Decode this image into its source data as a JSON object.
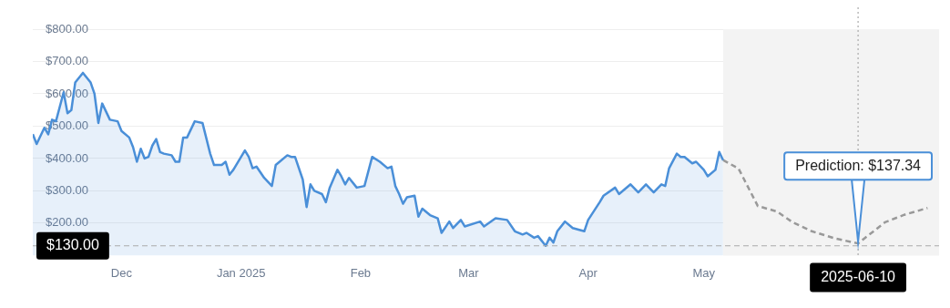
{
  "chart_data": {
    "type": "area",
    "xlim": [
      "2024-11-08",
      "2025-07-01"
    ],
    "xticks": [
      {
        "value": "2024-12-01",
        "label": "Dec"
      },
      {
        "value": "2025-01-01",
        "label": "Jan 2025"
      },
      {
        "value": "2025-02-01",
        "label": "Feb"
      },
      {
        "value": "2025-03-01",
        "label": "Mar"
      },
      {
        "value": "2025-04-01",
        "label": "Apr"
      },
      {
        "value": "2025-05-01",
        "label": "May"
      }
    ],
    "ylim": [
      100,
      800
    ],
    "yticks": [
      {
        "value": 200,
        "label": "$200.00"
      },
      {
        "value": 300,
        "label": "$300.00"
      },
      {
        "value": 400,
        "label": "$400.00"
      },
      {
        "value": 500,
        "label": "$500.00"
      },
      {
        "value": 600,
        "label": "$600.00"
      },
      {
        "value": 700,
        "label": "$700.00"
      },
      {
        "value": 800,
        "label": "$800.00"
      }
    ],
    "grid": "y",
    "legend": false,
    "marker": "none",
    "series": [
      {
        "color": "#4a8fd8",
        "x": [
          "2024-11-08",
          "2024-11-09",
          "2024-11-11",
          "2024-11-12",
          "2024-11-13",
          "2024-11-14",
          "2024-11-16",
          "2024-11-17",
          "2024-11-18",
          "2024-11-19",
          "2024-11-21",
          "2024-11-23",
          "2024-11-24",
          "2024-11-25",
          "2024-11-26",
          "2024-11-28",
          "2024-11-30",
          "2024-12-01",
          "2024-12-03",
          "2024-12-04",
          "2024-12-05",
          "2024-12-06",
          "2024-12-07",
          "2024-12-08",
          "2024-12-09",
          "2024-12-10",
          "2024-12-11",
          "2024-12-12",
          "2024-12-14",
          "2024-12-15",
          "2024-12-16",
          "2024-12-17",
          "2024-12-18",
          "2024-12-20",
          "2024-12-22",
          "2024-12-24",
          "2024-12-25",
          "2024-12-27",
          "2024-12-28",
          "2024-12-29",
          "2024-12-30",
          "2025-01-02",
          "2025-01-03",
          "2025-01-04",
          "2025-01-05",
          "2025-01-07",
          "2025-01-09",
          "2025-01-10",
          "2025-01-11",
          "2025-01-13",
          "2025-01-14",
          "2025-01-15",
          "2025-01-17",
          "2025-01-18",
          "2025-01-19",
          "2025-01-20",
          "2025-01-22",
          "2025-01-23",
          "2025-01-24",
          "2025-01-26",
          "2025-01-27",
          "2025-01-28",
          "2025-01-29",
          "2025-01-31",
          "2025-02-02",
          "2025-02-03",
          "2025-02-04",
          "2025-02-06",
          "2025-02-08",
          "2025-02-09",
          "2025-02-10",
          "2025-02-11",
          "2025-02-12",
          "2025-02-13",
          "2025-02-15",
          "2025-02-16",
          "2025-02-17",
          "2025-02-19",
          "2025-02-21",
          "2025-02-22",
          "2025-02-24",
          "2025-02-25",
          "2025-02-27",
          "2025-02-28",
          "2025-03-04",
          "2025-03-05",
          "2025-03-08",
          "2025-03-11",
          "2025-03-13",
          "2025-03-15",
          "2025-03-16",
          "2025-03-18",
          "2025-03-19",
          "2025-03-21",
          "2025-03-22",
          "2025-03-23",
          "2025-03-24",
          "2025-03-26",
          "2025-03-28",
          "2025-03-31",
          "2025-04-01",
          "2025-04-04",
          "2025-04-05",
          "2025-04-08",
          "2025-04-09",
          "2025-04-12",
          "2025-04-14",
          "2025-04-16",
          "2025-04-18",
          "2025-04-20",
          "2025-04-21",
          "2025-04-22",
          "2025-04-24",
          "2025-04-25",
          "2025-04-26",
          "2025-04-28",
          "2025-04-29",
          "2025-05-01",
          "2025-05-02",
          "2025-05-04",
          "2025-05-05",
          "2025-05-06"
        ],
        "values": [
          475,
          445,
          495,
          475,
          520,
          515,
          605,
          540,
          550,
          635,
          665,
          635,
          600,
          510,
          570,
          520,
          515,
          485,
          465,
          435,
          390,
          430,
          400,
          405,
          440,
          460,
          420,
          415,
          410,
          390,
          390,
          465,
          465,
          515,
          510,
          415,
          380,
          380,
          390,
          350,
          365,
          425,
          405,
          370,
          375,
          340,
          315,
          380,
          390,
          410,
          405,
          405,
          335,
          250,
          320,
          300,
          290,
          265,
          310,
          365,
          345,
          320,
          340,
          310,
          315,
          360,
          405,
          390,
          370,
          375,
          315,
          290,
          260,
          280,
          285,
          220,
          245,
          225,
          215,
          170,
          205,
          185,
          210,
          190,
          205,
          190,
          215,
          210,
          175,
          165,
          170,
          155,
          160,
          130,
          155,
          140,
          175,
          205,
          185,
          175,
          210,
          265,
          285,
          310,
          290,
          320,
          295,
          320,
          295,
          320,
          315,
          370,
          415,
          405,
          405,
          385,
          390,
          365,
          345,
          365,
          420,
          395
        ]
      },
      {
        "type": "line",
        "color": "#999999",
        "line_style": "dashed",
        "x": [
          "2025-05-06",
          "2025-05-10",
          "2025-05-15",
          "2025-05-20",
          "2025-05-24",
          "2025-05-29",
          "2025-06-04",
          "2025-06-10",
          "2025-06-17",
          "2025-06-22",
          "2025-06-28"
        ],
        "values": [
          395,
          369,
          253,
          236,
          203,
          175,
          153,
          137.34,
          203,
          226,
          247
        ]
      }
    ],
    "bands": [
      {
        "axis": "x",
        "from": "2025-05-06",
        "to": "2025-07-01",
        "color": "#f3f3f3"
      }
    ],
    "ref_lines": [
      {
        "axis": "y",
        "value": 130,
        "label": "$130.00",
        "color": "#aaaaaa",
        "line_style": "dashed"
      },
      {
        "axis": "x",
        "value": "2025-06-10",
        "label": "2025-06-10",
        "color": "#aaaaaa",
        "line_style": "dotted"
      }
    ],
    "annotations": [
      {
        "text": "Prediction: $137.34",
        "x": "2025-06-10",
        "y": 137.34
      }
    ]
  }
}
